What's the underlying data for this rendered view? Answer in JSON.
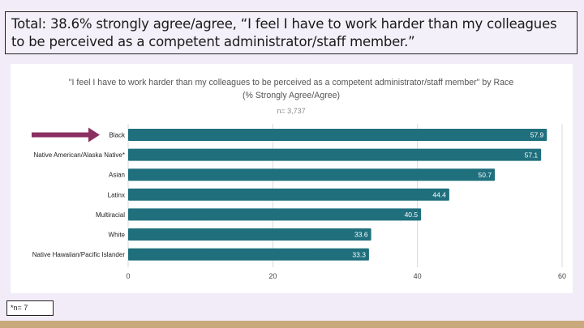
{
  "headline": "Total: 38.6% strongly agree/agree, “I feel I have to work harder than my colleagues to be perceived as a competent administrator/staff member.”",
  "footnote": "*n= 7",
  "colors": {
    "bar": "#1f6f7d",
    "arrow": "#8b2f62",
    "grid": "#d9d9d9",
    "text": "#222222",
    "subtext": "#777777"
  },
  "chart_data": {
    "type": "bar",
    "orientation": "horizontal",
    "title_line1": "\"I feel I have to work harder than my colleagues to be perceived as a competent administrator/staff member\" by Race",
    "title_line2": "(% Strongly Agree/Agree)",
    "subtitle": "n= 3,737",
    "categories": [
      "Black",
      "Native American/Alaska Native*",
      "Asian",
      "Latinx",
      "Multiracial",
      "White",
      "Native Hawaiian/Pacific Islander"
    ],
    "values": [
      57.9,
      57.1,
      50.7,
      44.4,
      40.5,
      33.6,
      33.3
    ],
    "value_labels": [
      "57.9",
      "57.1",
      "50.7",
      "44.4",
      "40.5",
      "33.6",
      "33.3"
    ],
    "xlim": [
      0,
      60
    ],
    "xticks": [
      0,
      20,
      40,
      60
    ],
    "xtick_labels": [
      "0",
      "20",
      "40",
      "60"
    ],
    "highlighted_category": "Black",
    "grid": true,
    "legend": "none"
  }
}
